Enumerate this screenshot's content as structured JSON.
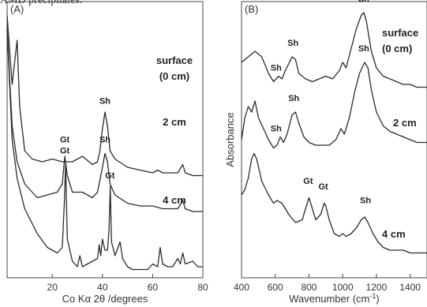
{
  "caption_fragment": "AMD precipitates.",
  "chart_data": [
    {
      "type": "line",
      "panel_label": "(A)",
      "xlabel": "Co Kα 2θ /degrees",
      "ylabel": "",
      "xlim": [
        2,
        80
      ],
      "x_ticks": [
        20,
        40,
        60,
        80
      ],
      "grid": false,
      "series": [
        {
          "name": "surface (0 cm)",
          "label_lines": [
            "surface",
            "(0 cm)"
          ],
          "points": [
            [
              2,
              0.95
            ],
            [
              4,
              0.7
            ],
            [
              5,
              0.78
            ],
            [
              6,
              0.86
            ],
            [
              7,
              0.62
            ],
            [
              9,
              0.46
            ],
            [
              12,
              0.43
            ],
            [
              16,
              0.42
            ],
            [
              20,
              0.43
            ],
            [
              24,
              0.42
            ],
            [
              28,
              0.42
            ],
            [
              32,
              0.44
            ],
            [
              36,
              0.41
            ],
            [
              38,
              0.42
            ],
            [
              39,
              0.46
            ],
            [
              40,
              0.54
            ],
            [
              41,
              0.6
            ],
            [
              42,
              0.55
            ],
            [
              43,
              0.46
            ],
            [
              45,
              0.43
            ],
            [
              50,
              0.4
            ],
            [
              55,
              0.39
            ],
            [
              60,
              0.38
            ],
            [
              62,
              0.39
            ],
            [
              64,
              0.38
            ],
            [
              70,
              0.38
            ],
            [
              72,
              0.41
            ],
            [
              73,
              0.38
            ],
            [
              76,
              0.37
            ],
            [
              80,
              0.37
            ]
          ]
        },
        {
          "name": "2 cm",
          "label_lines": [
            "2 cm"
          ],
          "points": [
            [
              2,
              0.92
            ],
            [
              3,
              0.72
            ],
            [
              4,
              0.55
            ],
            [
              6,
              0.42
            ],
            [
              9,
              0.34
            ],
            [
              14,
              0.29
            ],
            [
              18,
              0.3
            ],
            [
              22,
              0.31
            ],
            [
              24,
              0.34
            ],
            [
              25,
              0.44
            ],
            [
              26,
              0.37
            ],
            [
              28,
              0.31
            ],
            [
              32,
              0.31
            ],
            [
              36,
              0.29
            ],
            [
              38,
              0.31
            ],
            [
              40,
              0.4
            ],
            [
              41,
              0.45
            ],
            [
              42,
              0.42
            ],
            [
              43,
              0.34
            ],
            [
              45,
              0.3
            ],
            [
              50,
              0.27
            ],
            [
              55,
              0.26
            ],
            [
              60,
              0.26
            ],
            [
              64,
              0.25
            ],
            [
              70,
              0.25
            ],
            [
              72,
              0.28
            ],
            [
              73,
              0.25
            ],
            [
              76,
              0.24
            ],
            [
              80,
              0.24
            ]
          ]
        },
        {
          "name": "4 cm",
          "label_lines": [
            "4 cm"
          ],
          "points": [
            [
              2,
              0.9
            ],
            [
              3,
              0.7
            ],
            [
              4,
              0.5
            ],
            [
              6,
              0.36
            ],
            [
              9,
              0.25
            ],
            [
              14,
              0.16
            ],
            [
              18,
              0.11
            ],
            [
              22,
              0.09
            ],
            [
              24,
              0.11
            ],
            [
              24.8,
              0.27
            ],
            [
              25.3,
              0.41
            ],
            [
              26,
              0.14
            ],
            [
              28,
              0.06
            ],
            [
              30,
              0.04
            ],
            [
              31,
              0.08
            ],
            [
              32,
              0.04
            ],
            [
              34,
              0.05
            ],
            [
              36,
              0.06
            ],
            [
              38,
              0.07
            ],
            [
              38.7,
              0.12
            ],
            [
              39.3,
              0.08
            ],
            [
              40,
              0.14
            ],
            [
              41,
              0.1
            ],
            [
              42,
              0.1
            ],
            [
              42.6,
              0.17
            ],
            [
              43.1,
              0.33
            ],
            [
              43.6,
              0.13
            ],
            [
              45,
              0.08
            ],
            [
              47,
              0.13
            ],
            [
              48,
              0.07
            ],
            [
              50,
              0.04
            ],
            [
              52,
              0.03
            ],
            [
              55,
              0.03
            ],
            [
              58,
              0.03
            ],
            [
              60,
              0.05
            ],
            [
              62,
              0.04
            ],
            [
              63,
              0.11
            ],
            [
              64,
              0.05
            ],
            [
              66,
              0.04
            ],
            [
              68,
              0.04
            ],
            [
              70,
              0.07
            ],
            [
              71,
              0.05
            ],
            [
              72,
              0.09
            ],
            [
              73,
              0.05
            ],
            [
              76,
              0.06
            ],
            [
              78,
              0.04
            ],
            [
              80,
              0.04
            ]
          ]
        }
      ],
      "annotations": [
        {
          "text": "Sh",
          "x": 41,
          "y": 0.63
        },
        {
          "text": "Gt",
          "x": 25,
          "y": 0.49
        },
        {
          "text": "Sh",
          "x": 41,
          "y": 0.49
        },
        {
          "text": "Gt",
          "x": 25,
          "y": 0.45
        },
        {
          "text": "Gt",
          "x": 43,
          "y": 0.36
        }
      ]
    },
    {
      "type": "line",
      "panel_label": "(B)",
      "xlabel": "Wavenumber (cm",
      "xlabel_sup": "-1",
      "xlabel_end": ")",
      "ylabel": "Absorbance",
      "xlim": [
        400,
        1500
      ],
      "x_ticks": [
        400,
        600,
        800,
        1000,
        1200,
        1400
      ],
      "grid": false,
      "series": [
        {
          "name": "surface (0 cm)",
          "label_lines": [
            "surface",
            "(0 cm)"
          ],
          "points": [
            [
              400,
              0.78
            ],
            [
              440,
              0.8
            ],
            [
              480,
              0.82
            ],
            [
              520,
              0.8
            ],
            [
              560,
              0.74
            ],
            [
              590,
              0.71
            ],
            [
              620,
              0.73
            ],
            [
              640,
              0.72
            ],
            [
              660,
              0.75
            ],
            [
              700,
              0.8
            ],
            [
              720,
              0.79
            ],
            [
              740,
              0.74
            ],
            [
              780,
              0.72
            ],
            [
              820,
              0.71
            ],
            [
              860,
              0.72
            ],
            [
              900,
              0.73
            ],
            [
              940,
              0.72
            ],
            [
              980,
              0.75
            ],
            [
              1000,
              0.78
            ],
            [
              1020,
              0.76
            ],
            [
              1050,
              0.83
            ],
            [
              1080,
              0.9
            ],
            [
              1110,
              0.95
            ],
            [
              1125,
              0.96
            ],
            [
              1140,
              0.93
            ],
            [
              1170,
              0.82
            ],
            [
              1200,
              0.76
            ],
            [
              1240,
              0.73
            ],
            [
              1280,
              0.72
            ],
            [
              1320,
              0.71
            ],
            [
              1360,
              0.7
            ],
            [
              1400,
              0.7
            ],
            [
              1440,
              0.69
            ],
            [
              1480,
              0.69
            ],
            [
              1500,
              0.69
            ]
          ]
        },
        {
          "name": "2 cm",
          "label_lines": [
            "2 cm"
          ],
          "points": [
            [
              400,
              0.5
            ],
            [
              420,
              0.58
            ],
            [
              440,
              0.62
            ],
            [
              460,
              0.6
            ],
            [
              480,
              0.64
            ],
            [
              500,
              0.58
            ],
            [
              530,
              0.54
            ],
            [
              560,
              0.5
            ],
            [
              590,
              0.47
            ],
            [
              610,
              0.48
            ],
            [
              630,
              0.51
            ],
            [
              650,
              0.49
            ],
            [
              670,
              0.52
            ],
            [
              700,
              0.59
            ],
            [
              720,
              0.6
            ],
            [
              740,
              0.56
            ],
            [
              770,
              0.51
            ],
            [
              800,
              0.49
            ],
            [
              840,
              0.48
            ],
            [
              880,
              0.48
            ],
            [
              920,
              0.48
            ],
            [
              960,
              0.5
            ],
            [
              990,
              0.54
            ],
            [
              1010,
              0.52
            ],
            [
              1040,
              0.58
            ],
            [
              1070,
              0.67
            ],
            [
              1100,
              0.74
            ],
            [
              1130,
              0.78
            ],
            [
              1150,
              0.76
            ],
            [
              1170,
              0.68
            ],
            [
              1200,
              0.6
            ],
            [
              1240,
              0.55
            ],
            [
              1280,
              0.53
            ],
            [
              1320,
              0.52
            ],
            [
              1360,
              0.51
            ],
            [
              1400,
              0.5
            ],
            [
              1440,
              0.49
            ],
            [
              1480,
              0.49
            ],
            [
              1500,
              0.49
            ]
          ]
        },
        {
          "name": "4 cm",
          "label_lines": [
            "4 cm"
          ],
          "points": [
            [
              400,
              0.3
            ],
            [
              420,
              0.32
            ],
            [
              440,
              0.36
            ],
            [
              460,
              0.43
            ],
            [
              475,
              0.45
            ],
            [
              490,
              0.43
            ],
            [
              520,
              0.35
            ],
            [
              560,
              0.3
            ],
            [
              590,
              0.27
            ],
            [
              610,
              0.28
            ],
            [
              640,
              0.27
            ],
            [
              680,
              0.23
            ],
            [
              720,
              0.2
            ],
            [
              760,
              0.21
            ],
            [
              790,
              0.27
            ],
            [
              800,
              0.29
            ],
            [
              815,
              0.26
            ],
            [
              840,
              0.21
            ],
            [
              870,
              0.23
            ],
            [
              890,
              0.27
            ],
            [
              900,
              0.26
            ],
            [
              920,
              0.21
            ],
            [
              950,
              0.16
            ],
            [
              980,
              0.15
            ],
            [
              1000,
              0.16
            ],
            [
              1020,
              0.15
            ],
            [
              1050,
              0.16
            ],
            [
              1080,
              0.18
            ],
            [
              1110,
              0.21
            ],
            [
              1130,
              0.22
            ],
            [
              1150,
              0.2
            ],
            [
              1180,
              0.16
            ],
            [
              1210,
              0.13
            ],
            [
              1240,
              0.11
            ],
            [
              1280,
              0.1
            ],
            [
              1320,
              0.1
            ],
            [
              1360,
              0.1
            ],
            [
              1400,
              0.09
            ],
            [
              1440,
              0.09
            ],
            [
              1480,
              0.09
            ],
            [
              1500,
              0.09
            ]
          ]
        }
      ],
      "annotations": [
        {
          "text": "Sh",
          "x": 1125,
          "y": 1.0
        },
        {
          "text": "Sh",
          "x": 705,
          "y": 0.84
        },
        {
          "text": "Sh",
          "x": 605,
          "y": 0.75
        },
        {
          "text": "Sh",
          "x": 1125,
          "y": 0.82
        },
        {
          "text": "Sh",
          "x": 710,
          "y": 0.64
        },
        {
          "text": "Sh",
          "x": 605,
          "y": 0.53
        },
        {
          "text": "Gt",
          "x": 795,
          "y": 0.34
        },
        {
          "text": "Gt",
          "x": 885,
          "y": 0.32
        },
        {
          "text": "Sh",
          "x": 1135,
          "y": 0.27
        }
      ]
    }
  ]
}
